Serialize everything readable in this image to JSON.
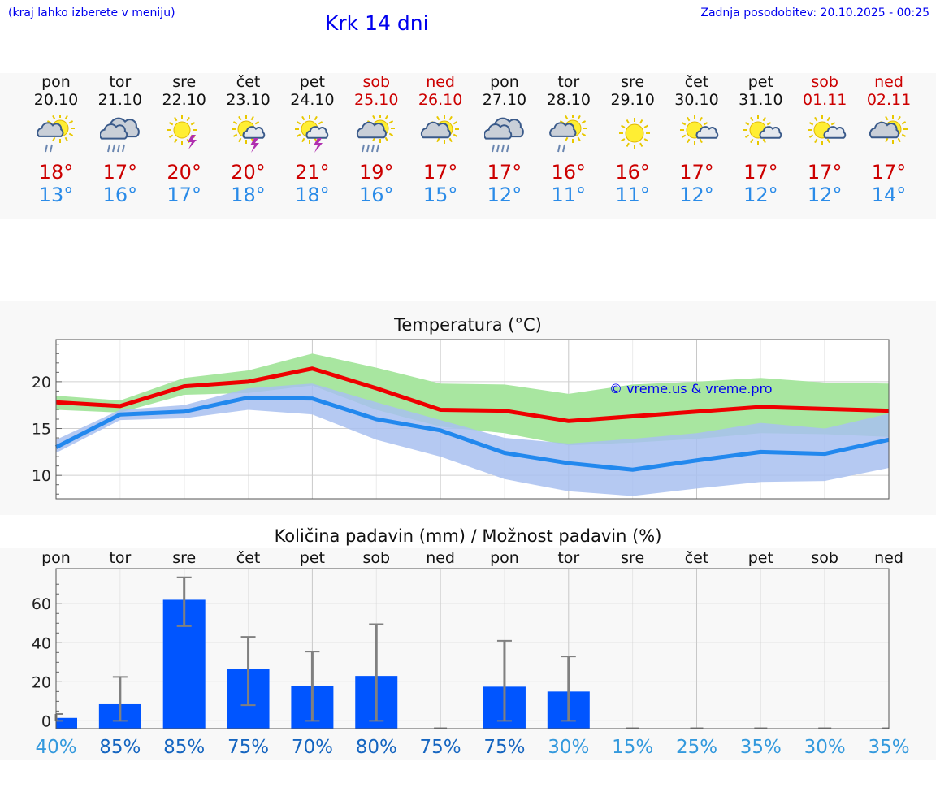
{
  "header": {
    "hint": "(kraj lahko izberete v meniju)",
    "city": "Krk 14 dni",
    "updated": "Zadnja posodobitev: 20.10.2025 - 00:25"
  },
  "forecast": [
    {
      "day": "pon",
      "date": "20.10",
      "icon": "sun-cloud-rain-icon",
      "tmax": "18°",
      "tmin": "13°",
      "weekend": false
    },
    {
      "day": "tor",
      "date": "21.10",
      "icon": "cloud-heavy-rain-icon",
      "tmax": "17°",
      "tmin": "16°",
      "weekend": false
    },
    {
      "day": "sre",
      "date": "22.10",
      "icon": "sun-thunderstorm-icon",
      "tmax": "20°",
      "tmin": "17°",
      "weekend": false
    },
    {
      "day": "čet",
      "date": "23.10",
      "icon": "sun-cloud-thunderstorm-icon",
      "tmax": "20°",
      "tmin": "18°",
      "weekend": false
    },
    {
      "day": "pet",
      "date": "24.10",
      "icon": "sun-cloud-thunderstorm-icon",
      "tmax": "21°",
      "tmin": "18°",
      "weekend": false
    },
    {
      "day": "sob",
      "date": "25.10",
      "icon": "sun-cloud-heavy-rain-icon",
      "tmax": "19°",
      "tmin": "16°",
      "weekend": true
    },
    {
      "day": "ned",
      "date": "26.10",
      "icon": "sun-cloud-icon",
      "tmax": "17°",
      "tmin": "15°",
      "weekend": true
    },
    {
      "day": "pon",
      "date": "27.10",
      "icon": "cloud-heavy-rain-icon",
      "tmax": "17°",
      "tmin": "12°",
      "weekend": false
    },
    {
      "day": "tor",
      "date": "28.10",
      "icon": "sun-cloud-rain-icon",
      "tmax": "16°",
      "tmin": "11°",
      "weekend": false
    },
    {
      "day": "sre",
      "date": "29.10",
      "icon": "sun-icon",
      "tmax": "16°",
      "tmin": "11°",
      "weekend": false
    },
    {
      "day": "čet",
      "date": "30.10",
      "icon": "sun-small-cloud-icon",
      "tmax": "17°",
      "tmin": "12°",
      "weekend": false
    },
    {
      "day": "pet",
      "date": "31.10",
      "icon": "sun-small-cloud-icon",
      "tmax": "17°",
      "tmin": "12°",
      "weekend": false
    },
    {
      "day": "sob",
      "date": "01.11",
      "icon": "sun-small-cloud-icon",
      "tmax": "17°",
      "tmin": "12°",
      "weekend": true
    },
    {
      "day": "ned",
      "date": "02.11",
      "icon": "sun-cloud-icon",
      "tmax": "17°",
      "tmin": "14°",
      "weekend": true
    }
  ],
  "colors": {
    "max_line": "#ee0000",
    "min_line": "#2288ee",
    "max_band": "#a8e6a0",
    "min_band": "#a8c0f0",
    "overlap_band": "#7cc0a0",
    "bar": "#0055ff",
    "error_bar": "#808080",
    "watermark": "#0000ee",
    "prob_dark": "#1565c0",
    "prob_light": "#3399dd"
  },
  "chart_data": [
    {
      "type": "line",
      "title": "Temperatura (°C)",
      "x": [
        "20.10",
        "21.10",
        "22.10",
        "23.10",
        "24.10",
        "25.10",
        "26.10",
        "27.10",
        "28.10",
        "29.10",
        "30.10",
        "31.10",
        "01.11",
        "02.11"
      ],
      "ylim": [
        7.5,
        24.5
      ],
      "yticks": [
        10,
        15,
        20
      ],
      "grid": true,
      "watermark": "© vreme.us & vreme.pro",
      "series": [
        {
          "role": "max",
          "values": [
            17.8,
            17.4,
            19.5,
            20.0,
            21.4,
            19.3,
            17.0,
            16.9,
            15.8,
            16.3,
            16.8,
            17.3,
            17.1,
            16.9
          ]
        },
        {
          "role": "min",
          "values": [
            13.0,
            16.5,
            16.8,
            18.3,
            18.2,
            16.0,
            14.8,
            12.4,
            11.3,
            10.6,
            11.6,
            12.5,
            12.3,
            13.8
          ]
        },
        {
          "role": "max-range-upper",
          "values": [
            18.5,
            18.0,
            20.4,
            21.2,
            23.0,
            21.5,
            19.8,
            19.7,
            18.7,
            19.7,
            20.0,
            20.4,
            19.9,
            19.8
          ]
        },
        {
          "role": "max-range-lower",
          "values": [
            17.0,
            16.7,
            18.6,
            18.8,
            19.6,
            17.0,
            15.2,
            14.5,
            13.2,
            13.5,
            13.9,
            14.5,
            14.4,
            14.1
          ]
        },
        {
          "role": "min-range-upper",
          "values": [
            13.8,
            17.0,
            17.5,
            19.3,
            19.8,
            17.8,
            15.9,
            14.0,
            13.4,
            13.9,
            14.5,
            15.6,
            15.0,
            16.6
          ]
        },
        {
          "role": "min-range-lower",
          "values": [
            12.4,
            15.9,
            16.1,
            17.0,
            16.5,
            13.8,
            12.0,
            9.6,
            8.3,
            7.8,
            8.6,
            9.3,
            9.4,
            10.8
          ]
        }
      ]
    },
    {
      "type": "bar",
      "title": "Količina padavin (mm) / Možnost padavin (%)",
      "categories": [
        "pon",
        "tor",
        "sre",
        "čet",
        "pet",
        "sob",
        "ned",
        "pon",
        "tor",
        "sre",
        "čet",
        "pet",
        "sob",
        "ned"
      ],
      "ylim": [
        -4,
        78
      ],
      "yticks": [
        0,
        20,
        40,
        60
      ],
      "grid": true,
      "values": [
        1.5,
        8.5,
        62.0,
        26.5,
        18.0,
        23.0,
        0.0,
        17.5,
        15.0,
        0.0,
        0.0,
        0.0,
        0.0,
        0.0
      ],
      "error_high": [
        3.5,
        22.5,
        73.5,
        43.0,
        35.5,
        49.5,
        0.0,
        41.0,
        33.0,
        0.0,
        0.0,
        0.0,
        0.0,
        0.0
      ],
      "error_low": [
        0.0,
        0.0,
        48.5,
        8.0,
        0.0,
        0.0,
        0.0,
        0.0,
        0.0,
        0.0,
        0.0,
        0.0,
        0.0,
        0.0
      ],
      "probability": [
        "40%",
        "85%",
        "85%",
        "75%",
        "70%",
        "80%",
        "75%",
        "75%",
        "30%",
        "15%",
        "25%",
        "35%",
        "30%",
        "35%"
      ]
    }
  ]
}
